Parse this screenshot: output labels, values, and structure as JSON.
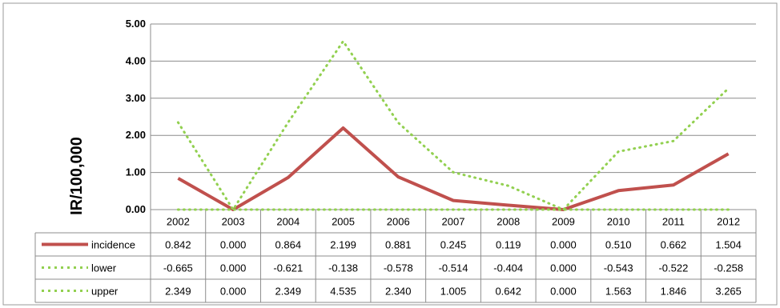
{
  "chart_data": {
    "type": "line",
    "title": "",
    "xlabel": "",
    "ylabel": "IR/100,000",
    "ylim": [
      0,
      5
    ],
    "yticks": [
      "0.00",
      "1.00",
      "2.00",
      "3.00",
      "4.00",
      "5.00"
    ],
    "grid": true,
    "legend_placement": "data-table-left",
    "categories": [
      "2002",
      "2003",
      "2004",
      "2005",
      "2006",
      "2007",
      "2008",
      "2009",
      "2010",
      "2011",
      "2012"
    ],
    "series": [
      {
        "name": "incidence",
        "color": "#C0504D",
        "style": "solid",
        "values": [
          0.842,
          0.0,
          0.864,
          2.199,
          0.881,
          0.245,
          0.119,
          0.0,
          0.51,
          0.662,
          1.504
        ],
        "labels": [
          "0.842",
          "0.000",
          "0.864",
          "2.199",
          "0.881",
          "0.245",
          "0.119",
          "0.000",
          "0.510",
          "0.662",
          "1.504"
        ]
      },
      {
        "name": "lower",
        "color": "#92D050",
        "style": "dotted",
        "values": [
          -0.665,
          0.0,
          -0.621,
          -0.138,
          -0.578,
          -0.514,
          -0.404,
          0.0,
          -0.543,
          -0.522,
          -0.258
        ],
        "labels": [
          "-0.665",
          "0.000",
          "-0.621",
          "-0.138",
          "-0.578",
          "-0.514",
          "-0.404",
          "0.000",
          "-0.543",
          "-0.522",
          "-0.258"
        ]
      },
      {
        "name": "upper",
        "color": "#92D050",
        "style": "dotted",
        "values": [
          2.349,
          0.0,
          2.349,
          4.535,
          2.34,
          1.005,
          0.642,
          0.0,
          1.563,
          1.846,
          3.265
        ],
        "labels": [
          "2.349",
          "0.000",
          "2.349",
          "4.535",
          "2.340",
          "1.005",
          "0.642",
          "0.000",
          "1.563",
          "1.846",
          "3.265"
        ]
      }
    ]
  }
}
